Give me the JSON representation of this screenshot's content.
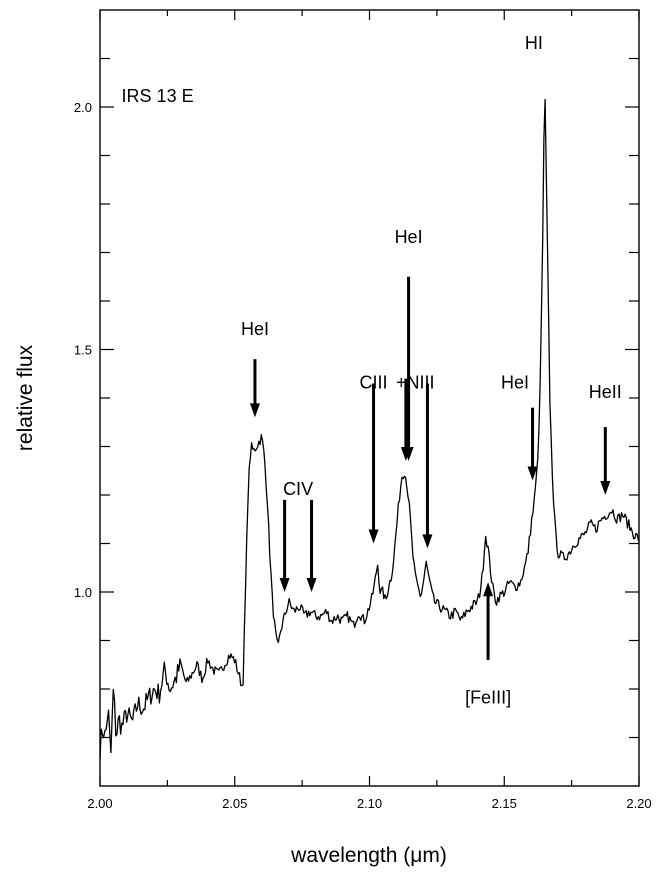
{
  "chart_data": {
    "type": "line",
    "title": "",
    "xlabel": "wavelength (μm)",
    "ylabel": "relative flux",
    "xlim": [
      2.0,
      2.2
    ],
    "ylim": [
      0.6,
      2.2
    ],
    "x_ticks": [
      2.0,
      2.05,
      2.1,
      2.15,
      2.2
    ],
    "x_tick_labels": [
      "2.00",
      "2.05",
      "2.10",
      "2.15",
      "2.20"
    ],
    "y_ticks": [
      1.0,
      1.5,
      2.0
    ],
    "y_tick_labels": [
      "1.0",
      "1.5",
      "2.0"
    ],
    "grid": false,
    "legend": "none",
    "series": [
      {
        "x": [
          2.0,
          2.001,
          2.002,
          2.003,
          2.004,
          2.005,
          2.006,
          2.007,
          2.008,
          2.01,
          2.012,
          2.014,
          2.016,
          2.018,
          2.02,
          2.022,
          2.024,
          2.026,
          2.028,
          2.03,
          2.032,
          2.034,
          2.036,
          2.038,
          2.04,
          2.042,
          2.044,
          2.046,
          2.048,
          2.05,
          2.052,
          2.053,
          2.054,
          2.055,
          2.056,
          2.057,
          2.058,
          2.059,
          2.06,
          2.061,
          2.062,
          2.063,
          2.064,
          2.065,
          2.066,
          2.067,
          2.068,
          2.069,
          2.07,
          2.072,
          2.074,
          2.076,
          2.078,
          2.08,
          2.082,
          2.084,
          2.086,
          2.088,
          2.09,
          2.092,
          2.094,
          2.096,
          2.098,
          2.1,
          2.101,
          2.102,
          2.103,
          2.104,
          2.105,
          2.106,
          2.107,
          2.108,
          2.109,
          2.11,
          2.111,
          2.112,
          2.113,
          2.114,
          2.115,
          2.116,
          2.117,
          2.118,
          2.119,
          2.12,
          2.121,
          2.122,
          2.123,
          2.124,
          2.126,
          2.128,
          2.13,
          2.132,
          2.134,
          2.136,
          2.138,
          2.14,
          2.141,
          2.142,
          2.143,
          2.144,
          2.145,
          2.146,
          2.147,
          2.148,
          2.15,
          2.152,
          2.154,
          2.156,
          2.158,
          2.159,
          2.16,
          2.161,
          2.162,
          2.163,
          2.164,
          2.165,
          2.166,
          2.167,
          2.168,
          2.169,
          2.17,
          2.172,
          2.174,
          2.176,
          2.178,
          2.18,
          2.182,
          2.184,
          2.186,
          2.188,
          2.19,
          2.192,
          2.194,
          2.196,
          2.198,
          2.2
        ],
        "values": [
          0.68,
          0.72,
          0.7,
          0.76,
          0.66,
          0.8,
          0.7,
          0.74,
          0.72,
          0.75,
          0.73,
          0.77,
          0.76,
          0.78,
          0.8,
          0.79,
          0.84,
          0.8,
          0.82,
          0.85,
          0.81,
          0.83,
          0.85,
          0.82,
          0.86,
          0.84,
          0.83,
          0.85,
          0.87,
          0.86,
          0.82,
          0.8,
          1.0,
          1.22,
          1.3,
          1.29,
          1.3,
          1.31,
          1.32,
          1.28,
          1.2,
          1.08,
          0.98,
          0.92,
          0.88,
          0.92,
          0.94,
          0.96,
          0.98,
          0.96,
          0.97,
          0.95,
          0.96,
          0.95,
          0.95,
          0.96,
          0.94,
          0.95,
          0.94,
          0.95,
          0.93,
          0.96,
          0.94,
          0.97,
          0.99,
          1.02,
          1.06,
          1.0,
          1.0,
          0.98,
          1.01,
          1.03,
          1.07,
          1.13,
          1.19,
          1.24,
          1.25,
          1.22,
          1.16,
          1.08,
          1.03,
          1.01,
          0.99,
          1.02,
          1.06,
          1.03,
          1.0,
          0.98,
          0.97,
          0.96,
          0.95,
          0.96,
          0.94,
          0.96,
          0.97,
          0.98,
          1.0,
          1.04,
          1.12,
          1.09,
          1.04,
          1.0,
          0.98,
          0.99,
          1.0,
          1.02,
          1.01,
          1.02,
          1.06,
          1.09,
          1.14,
          1.18,
          1.24,
          1.34,
          1.62,
          2.06,
          1.72,
          1.38,
          1.22,
          1.12,
          1.08,
          1.07,
          1.08,
          1.1,
          1.11,
          1.12,
          1.14,
          1.13,
          1.15,
          1.16,
          1.17,
          1.15,
          1.16,
          1.14,
          1.12,
          1.11
        ]
      }
    ],
    "annotations": [
      {
        "label": "IRS 13 E",
        "x": 2.008,
        "y": 2.01,
        "arrow": "none"
      },
      {
        "label": "HeI",
        "x": 2.0575,
        "y": 1.53,
        "arrow": "down",
        "from": 1.48,
        "to": 1.36
      },
      {
        "label": "CIV",
        "x": 2.0735,
        "y": 1.2,
        "arrow": "none"
      },
      {
        "label": "",
        "x": 2.0685,
        "y": 1.2,
        "arrow": "down",
        "from": 1.19,
        "to": 1.0
      },
      {
        "label": "",
        "x": 2.0785,
        "y": 1.2,
        "arrow": "down",
        "from": 1.19,
        "to": 1.0
      },
      {
        "label": "CIII",
        "x": 2.1015,
        "y": 1.42,
        "arrow": "down",
        "from": 1.43,
        "to": 1.1
      },
      {
        "label": "HeI",
        "x": 2.1145,
        "y": 1.72,
        "arrow": "down",
        "from": 1.65,
        "to": 1.27
      },
      {
        "label": "+NIII",
        "x": 2.117,
        "y": 1.42,
        "arrow": "none"
      },
      {
        "label": "",
        "x": 2.1135,
        "y": 1.43,
        "arrow": "down",
        "from": 1.44,
        "to": 1.27
      },
      {
        "label": "",
        "x": 2.1215,
        "y": 1.43,
        "arrow": "down",
        "from": 1.43,
        "to": 1.09
      },
      {
        "label": "HeI",
        "x": 2.154,
        "y": 1.42,
        "arrow": "none"
      },
      {
        "label": "",
        "x": 2.1605,
        "y": 1.38,
        "arrow": "down",
        "from": 1.38,
        "to": 1.23
      },
      {
        "label": "HI",
        "x": 2.161,
        "y": 2.12,
        "arrow": "none"
      },
      {
        "label": "HeII",
        "x": 2.1875,
        "y": 1.4,
        "arrow": "down",
        "from": 1.34,
        "to": 1.2
      },
      {
        "label": "[FeIII]",
        "x": 2.144,
        "y": 0.77,
        "arrow": "up",
        "from": 0.86,
        "to": 1.02
      }
    ]
  }
}
